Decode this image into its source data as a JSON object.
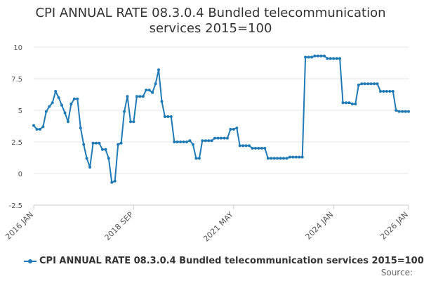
{
  "colors": {
    "series": "#1f7ab5",
    "grid": "#e6e6e6",
    "axis": "#cccccc"
  },
  "footer": {
    "source_label": "Source:"
  },
  "chart_data": {
    "type": "line",
    "title_line1": "CPI ANNUAL RATE 08.3.0.4 Bundled telecommunication",
    "title_line2": "services 2015=100",
    "xlabel": "",
    "ylabel": "",
    "x_range": [
      "2016-01",
      "2026-01"
    ],
    "ylim": [
      -2.5,
      10
    ],
    "yticks": [
      -2.5,
      0,
      2.5,
      5,
      7.5,
      10
    ],
    "yticklabels": [
      "-2.5",
      "0",
      "2.5",
      "5",
      "7.5",
      "10"
    ],
    "xticks": [
      {
        "date": "2016-01",
        "label": "2016 JAN"
      },
      {
        "date": "2018-09",
        "label": "2018 SEP"
      },
      {
        "date": "2021-05",
        "label": "2021 MAY"
      },
      {
        "date": "2024-01",
        "label": "2024 JAN"
      },
      {
        "date": "2026-01",
        "label": "2026 JAN"
      }
    ],
    "grid": "horizontal",
    "legend_position": "bottom",
    "series": [
      {
        "name": "CPI ANNUAL RATE 08.3.0.4 Bundled telecommunication services 2015=100",
        "points": [
          [
            "2016-01",
            3.8
          ],
          [
            "2016-02",
            3.5
          ],
          [
            "2016-03",
            3.5
          ],
          [
            "2016-04",
            3.7
          ],
          [
            "2016-05",
            4.9
          ],
          [
            "2016-06",
            5.3
          ],
          [
            "2016-07",
            5.6
          ],
          [
            "2016-08",
            6.5
          ],
          [
            "2016-09",
            6.0
          ],
          [
            "2016-10",
            5.4
          ],
          [
            "2016-11",
            4.8
          ],
          [
            "2016-12",
            4.1
          ],
          [
            "2017-01",
            5.5
          ],
          [
            "2017-02",
            5.9
          ],
          [
            "2017-03",
            5.9
          ],
          [
            "2017-04",
            3.6
          ],
          [
            "2017-05",
            2.3
          ],
          [
            "2017-06",
            1.2
          ],
          [
            "2017-07",
            0.5
          ],
          [
            "2017-08",
            2.4
          ],
          [
            "2017-09",
            2.4
          ],
          [
            "2017-10",
            2.4
          ],
          [
            "2017-11",
            1.9
          ],
          [
            "2017-12",
            1.9
          ],
          [
            "2018-01",
            1.2
          ],
          [
            "2018-02",
            -0.7
          ],
          [
            "2018-03",
            -0.6
          ],
          [
            "2018-04",
            2.3
          ],
          [
            "2018-05",
            2.4
          ],
          [
            "2018-06",
            4.9
          ],
          [
            "2018-07",
            6.1
          ],
          [
            "2018-08",
            4.1
          ],
          [
            "2018-09",
            4.1
          ],
          [
            "2018-10",
            6.1
          ],
          [
            "2018-11",
            6.1
          ],
          [
            "2018-12",
            6.1
          ],
          [
            "2019-01",
            6.6
          ],
          [
            "2019-02",
            6.6
          ],
          [
            "2019-03",
            6.4
          ],
          [
            "2019-04",
            7.1
          ],
          [
            "2019-05",
            8.2
          ],
          [
            "2019-06",
            5.7
          ],
          [
            "2019-07",
            4.5
          ],
          [
            "2019-08",
            4.5
          ],
          [
            "2019-09",
            4.5
          ],
          [
            "2019-10",
            2.5
          ],
          [
            "2019-11",
            2.5
          ],
          [
            "2019-12",
            2.5
          ],
          [
            "2020-01",
            2.5
          ],
          [
            "2020-02",
            2.5
          ],
          [
            "2020-03",
            2.6
          ],
          [
            "2020-04",
            2.3
          ],
          [
            "2020-05",
            1.2
          ],
          [
            "2020-06",
            1.2
          ],
          [
            "2020-07",
            2.6
          ],
          [
            "2020-08",
            2.6
          ],
          [
            "2020-09",
            2.6
          ],
          [
            "2020-10",
            2.6
          ],
          [
            "2020-11",
            2.8
          ],
          [
            "2020-12",
            2.8
          ],
          [
            "2021-01",
            2.8
          ],
          [
            "2021-02",
            2.8
          ],
          [
            "2021-03",
            2.8
          ],
          [
            "2021-04",
            3.5
          ],
          [
            "2021-05",
            3.5
          ],
          [
            "2021-06",
            3.6
          ],
          [
            "2021-07",
            2.2
          ],
          [
            "2021-08",
            2.2
          ],
          [
            "2021-09",
            2.2
          ],
          [
            "2021-10",
            2.2
          ],
          [
            "2021-11",
            2.0
          ],
          [
            "2021-12",
            2.0
          ],
          [
            "2022-01",
            2.0
          ],
          [
            "2022-02",
            2.0
          ],
          [
            "2022-03",
            2.0
          ],
          [
            "2022-04",
            1.2
          ],
          [
            "2022-05",
            1.2
          ],
          [
            "2022-06",
            1.2
          ],
          [
            "2022-07",
            1.2
          ],
          [
            "2022-08",
            1.2
          ],
          [
            "2022-09",
            1.2
          ],
          [
            "2022-10",
            1.2
          ],
          [
            "2022-11",
            1.3
          ],
          [
            "2022-12",
            1.3
          ],
          [
            "2023-01",
            1.3
          ],
          [
            "2023-02",
            1.3
          ],
          [
            "2023-03",
            1.3
          ],
          [
            "2023-04",
            9.2
          ],
          [
            "2023-05",
            9.2
          ],
          [
            "2023-06",
            9.2
          ],
          [
            "2023-07",
            9.3
          ],
          [
            "2023-08",
            9.3
          ],
          [
            "2023-09",
            9.3
          ],
          [
            "2023-10",
            9.3
          ],
          [
            "2023-11",
            9.1
          ],
          [
            "2023-12",
            9.1
          ],
          [
            "2024-01",
            9.1
          ],
          [
            "2024-02",
            9.1
          ],
          [
            "2024-03",
            9.1
          ],
          [
            "2024-04",
            5.6
          ],
          [
            "2024-05",
            5.6
          ],
          [
            "2024-06",
            5.6
          ],
          [
            "2024-07",
            5.5
          ],
          [
            "2024-08",
            5.5
          ],
          [
            "2024-09",
            7.0
          ],
          [
            "2024-10",
            7.1
          ],
          [
            "2024-11",
            7.1
          ],
          [
            "2024-12",
            7.1
          ],
          [
            "2025-01",
            7.1
          ],
          [
            "2025-02",
            7.1
          ],
          [
            "2025-03",
            7.1
          ],
          [
            "2025-04",
            6.5
          ],
          [
            "2025-05",
            6.5
          ],
          [
            "2025-06",
            6.5
          ],
          [
            "2025-07",
            6.5
          ],
          [
            "2025-08",
            6.5
          ],
          [
            "2025-09",
            5.0
          ],
          [
            "2025-10",
            4.9
          ],
          [
            "2025-11",
            4.9
          ],
          [
            "2025-12",
            4.9
          ],
          [
            "2026-01",
            4.9
          ]
        ]
      }
    ]
  }
}
